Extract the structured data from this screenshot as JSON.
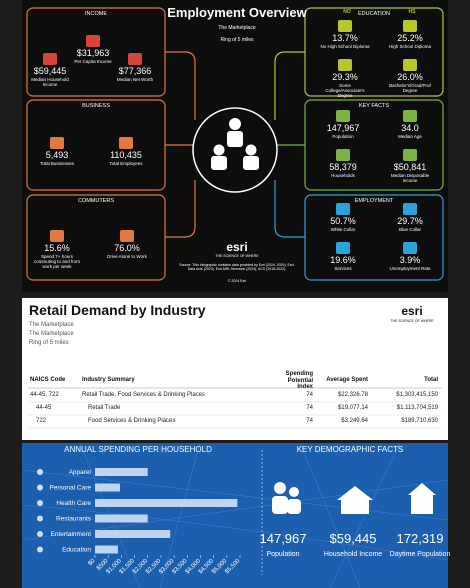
{
  "header": {
    "title": "Employment Overview",
    "subtitle": "The Marketplace",
    "ring": "Ring of 5 miles"
  },
  "income": {
    "title": "INCOME",
    "items": [
      {
        "value": "$31,963",
        "label": "Per Capita Income"
      },
      {
        "value": "$59,445",
        "label": "Median Household Income"
      },
      {
        "value": "$77,366",
        "label": "Median Net Worth"
      }
    ]
  },
  "business": {
    "title": "BUSINESS",
    "items": [
      {
        "value": "5,493",
        "label": "Total Businesses"
      },
      {
        "value": "110,435",
        "label": "Total Employees"
      }
    ]
  },
  "commuters": {
    "title": "COMMUTERS",
    "items": [
      {
        "value": "15.6%",
        "label": "Spend 7+ hours commuting to and from work per week"
      },
      {
        "value": "76.0%",
        "label": "Drive Alone to Work"
      }
    ]
  },
  "education": {
    "title": "EDUCATION",
    "badges": [
      "NO",
      "HS"
    ],
    "items": [
      {
        "value": "13.7%",
        "label": "No High School Diploma"
      },
      {
        "value": "25.2%",
        "label": "High School Diploma"
      },
      {
        "value": "29.3%",
        "label": "Some College/Associate's Degree"
      },
      {
        "value": "26.0%",
        "label": "Bachelor's/Grad/Prof Degree"
      }
    ]
  },
  "key_facts": {
    "title": "KEY FACTS",
    "items": [
      {
        "value": "147,967",
        "label": "Population"
      },
      {
        "value": "34.0",
        "label": "Median Age"
      },
      {
        "value": "58,379",
        "label": "Households"
      },
      {
        "value": "$50,841",
        "label": "Median Disposable Income"
      }
    ]
  },
  "employment": {
    "title": "EMPLOYMENT",
    "items": [
      {
        "value": "50.7%",
        "label": "White Collar"
      },
      {
        "value": "29.7%",
        "label": "Blue Collar"
      },
      {
        "value": "19.6%",
        "label": "Services"
      },
      {
        "value": "3.9%",
        "label": "Unemployment Rate"
      }
    ]
  },
  "esri": {
    "logo": "esri",
    "tagline": "THE SCIENCE OF WHERE",
    "source": "Source: This infographic contains data provided by Esri (2024, 2029), Esri-Data Axle (2024), Esri-MRI-Simmons (2024), ACS (2018-2022).",
    "copyright": "© 2024 Esri"
  },
  "retail": {
    "title": "Retail Demand by Industry",
    "subtitles": [
      "The Marketplace",
      "The Marketplace",
      "Ring of 5 miles"
    ],
    "columns": [
      "NAICS Code",
      "Industry Summary",
      "Spending Potential Index",
      "Average Spent",
      "Total"
    ],
    "rows": [
      [
        "44-45, 722",
        "Retail Trade, Food Services & Drinking Places",
        "74",
        "$22,326.78",
        "$1,303,415,150"
      ],
      [
        "44-45",
        "Retail Trade",
        "74",
        "$19,077.14",
        "$1,113,704,519"
      ],
      [
        "722",
        "Food Services & Drinking Places",
        "74",
        "$3,249.64",
        "$189,710,630"
      ]
    ]
  },
  "chart_data": {
    "type": "bar",
    "orientation": "horizontal",
    "title": "ANNUAL SPENDING PER HOUSEHOLD",
    "categories": [
      "Apparel",
      "Personal Care",
      "Health Care",
      "Restaurants",
      "Entertainment",
      "Education"
    ],
    "values": [
      2000,
      950,
      5400,
      2000,
      2850,
      870
    ],
    "color": "#bcd6f2",
    "xlim": [
      0,
      5500
    ],
    "xticks": [
      {
        "value": 0,
        "label": "$0"
      },
      {
        "value": 500,
        "label": "$500"
      },
      {
        "value": 1000,
        "label": "$1,000"
      },
      {
        "value": 1500,
        "label": "$1,500"
      },
      {
        "value": 2000,
        "label": "$2,000"
      },
      {
        "value": 2500,
        "label": "$2,500"
      },
      {
        "value": 3000,
        "label": "$3,000"
      },
      {
        "value": 3500,
        "label": "$3,500"
      },
      {
        "value": 4000,
        "label": "$4,000"
      },
      {
        "value": 4500,
        "label": "$4,500"
      },
      {
        "value": 5000,
        "label": "$5,000"
      },
      {
        "value": 5500,
        "label": "$5,500"
      }
    ]
  },
  "demographics": {
    "title": "KEY DEMOGRAPHIC FACTS",
    "items": [
      {
        "value": "147,967",
        "label": "Population"
      },
      {
        "value": "$59,445",
        "label": "Household Income"
      },
      {
        "value": "172,319",
        "label": "Daytime Population"
      }
    ]
  }
}
